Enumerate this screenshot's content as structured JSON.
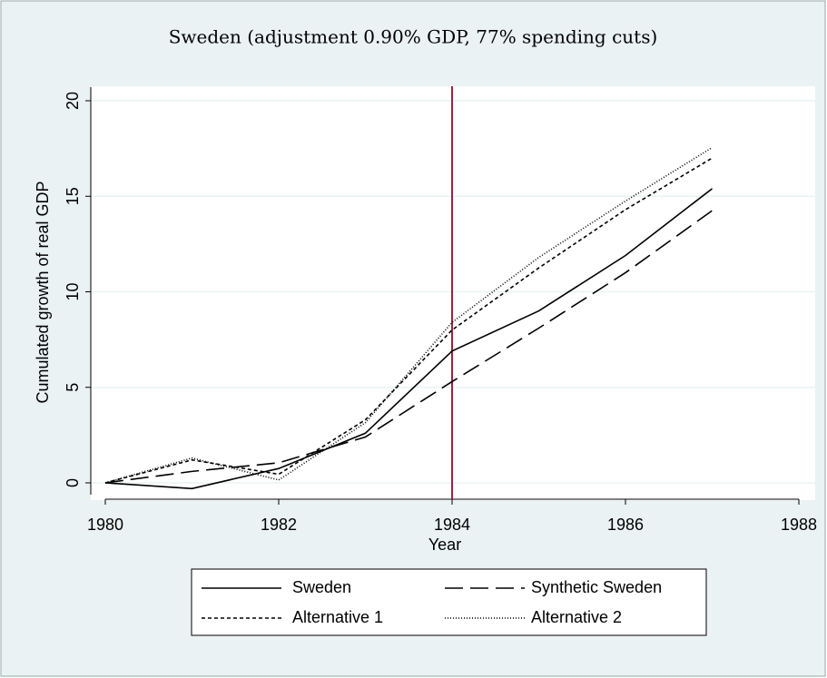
{
  "chart_data": {
    "type": "line",
    "title": "Sweden (adjustment 0.90% GDP, 77% spending cuts)",
    "xlabel": "Year",
    "ylabel": "Cumulated growth of real GDP",
    "x": [
      1980,
      1981,
      1982,
      1983,
      1984,
      1985,
      1986,
      1987
    ],
    "series": [
      {
        "name": "Sweden",
        "color": "#000000",
        "dash": "none",
        "values": [
          0,
          -0.3,
          0.75,
          2.6,
          6.9,
          9.0,
          11.9,
          15.4
        ]
      },
      {
        "name": "Synthetic Sweden",
        "color": "#000000",
        "dash": "20,8",
        "values": [
          0,
          0.6,
          1.05,
          2.4,
          5.3,
          8.1,
          11.0,
          14.25
        ]
      },
      {
        "name": "Alternative 1",
        "color": "#000000",
        "dash": "4,3",
        "values": [
          0,
          1.2,
          0.45,
          3.3,
          8.0,
          11.25,
          14.3,
          17.0
        ]
      },
      {
        "name": "Alternative 2",
        "color": "#000000",
        "dash": "1,2",
        "values": [
          0,
          1.3,
          0.15,
          3.15,
          8.4,
          11.8,
          14.75,
          17.55
        ]
      }
    ],
    "xlim": [
      1980,
      1988
    ],
    "xticks": [
      1980,
      1982,
      1984,
      1986,
      1988
    ],
    "ylim": [
      0,
      20
    ],
    "yticks": [
      0,
      5,
      10,
      15,
      20
    ],
    "grid": true,
    "vline": {
      "x": 1984,
      "color": "#a3203f"
    },
    "legend": "bottom"
  }
}
